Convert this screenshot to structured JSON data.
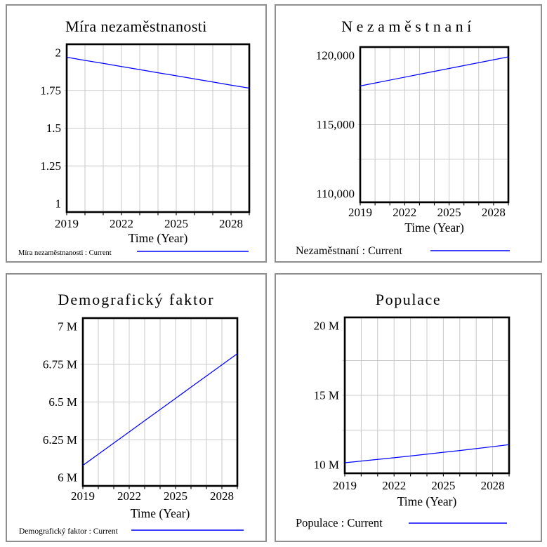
{
  "colors": {
    "series_line": "#0000ff",
    "grid": "#c9c9c9",
    "frame": "#000000",
    "panel_border": "#8f8f8f",
    "text": "#000000"
  },
  "chart_data": [
    {
      "type": "line",
      "title": "Míra nezaměstnanosti",
      "xlabel": "Time (Year)",
      "legend_label": "Míra nezaměstnanosti : Current",
      "x_range": [
        2019,
        2029
      ],
      "x_ticks": [
        2019,
        2022,
        2025,
        2028
      ],
      "y_range": [
        1,
        2
      ],
      "y_ticks": [
        {
          "value": 2,
          "label": "2"
        },
        {
          "value": 1.75,
          "label": "1.75"
        },
        {
          "value": 1.5,
          "label": "1.5"
        },
        {
          "value": 1.25,
          "label": "1.25"
        },
        {
          "value": 1,
          "label": "1"
        }
      ],
      "y_gridlines": [
        1.75,
        1.5,
        1.25
      ],
      "series": [
        {
          "name": "Current",
          "x": [
            2019,
            2020,
            2021,
            2022,
            2023,
            2024,
            2025,
            2026,
            2027,
            2028,
            2029
          ],
          "y": [
            1.97,
            1.949,
            1.929,
            1.908,
            1.888,
            1.867,
            1.847,
            1.826,
            1.806,
            1.785,
            1.765
          ]
        }
      ]
    },
    {
      "type": "line",
      "title": "Nezaměstnaní",
      "xlabel": "Time (Year)",
      "legend_label": "Nezaměstnaní : Current",
      "x_range": [
        2019,
        2029
      ],
      "x_ticks": [
        2019,
        2022,
        2025,
        2028
      ],
      "y_range": [
        110000,
        120000
      ],
      "y_ticks": [
        {
          "value": 120000,
          "label": "120,000"
        },
        {
          "value": 115000,
          "label": "115,000"
        },
        {
          "value": 110000,
          "label": "110,000"
        }
      ],
      "y_gridlines": [
        117500,
        115000,
        112500
      ],
      "series": [
        {
          "name": "Current",
          "x": [
            2019,
            2020,
            2021,
            2022,
            2023,
            2024,
            2025,
            2026,
            2027,
            2028,
            2029
          ],
          "y": [
            117800,
            118010,
            118220,
            118430,
            118640,
            118850,
            119060,
            119270,
            119480,
            119690,
            119900
          ]
        }
      ]
    },
    {
      "type": "line",
      "title": "Demografický faktor",
      "xlabel": "Time (Year)",
      "legend_label": "Demografický faktor : Current",
      "x_range": [
        2019,
        2029
      ],
      "x_ticks": [
        2019,
        2022,
        2025,
        2028
      ],
      "y_range": [
        6000000,
        7000000
      ],
      "y_ticks": [
        {
          "value": 7000000,
          "label": "7 M"
        },
        {
          "value": 6750000,
          "label": "6.75 M"
        },
        {
          "value": 6500000,
          "label": "6.5 M"
        },
        {
          "value": 6250000,
          "label": "6.25 M"
        },
        {
          "value": 6000000,
          "label": "6 M"
        }
      ],
      "y_gridlines": [
        6750000,
        6500000,
        6250000
      ],
      "series": [
        {
          "name": "Current",
          "x": [
            2019,
            2020,
            2021,
            2022,
            2023,
            2024,
            2025,
            2026,
            2027,
            2028,
            2029
          ],
          "y": [
            6080000,
            6154000,
            6228000,
            6302000,
            6376000,
            6450000,
            6524000,
            6598000,
            6672000,
            6746000,
            6820000
          ]
        }
      ]
    },
    {
      "type": "line",
      "title": "Populace",
      "xlabel": "Time (Year)",
      "legend_label": "Populace : Current",
      "x_range": [
        2019,
        2029
      ],
      "x_ticks": [
        2019,
        2022,
        2025,
        2028
      ],
      "y_range": [
        10000000,
        20000000
      ],
      "y_ticks": [
        {
          "value": 20000000,
          "label": "20 M"
        },
        {
          "value": 15000000,
          "label": "15 M"
        },
        {
          "value": 10000000,
          "label": "10 M"
        }
      ],
      "y_gridlines": [
        17500000,
        15000000,
        12500000
      ],
      "series": [
        {
          "name": "Current",
          "x": [
            2019,
            2020,
            2021,
            2022,
            2023,
            2024,
            2025,
            2026,
            2027,
            2028,
            2029
          ],
          "y": [
            10150000,
            10270000,
            10390000,
            10510000,
            10640000,
            10770000,
            10900000,
            11030000,
            11170000,
            11310000,
            11450000
          ]
        }
      ]
    }
  ]
}
